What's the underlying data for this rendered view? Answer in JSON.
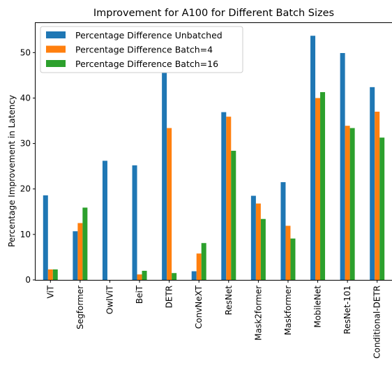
{
  "chart_data": {
    "type": "bar",
    "title": "Improvement for A100 for Different Batch Sizes",
    "xlabel": "",
    "ylabel": "Percentage Improvement in Latency",
    "ylim": [
      0,
      56.5
    ],
    "yticks": [
      0,
      10,
      20,
      30,
      40,
      50
    ],
    "grid": false,
    "legend_position": "top-left",
    "categories": [
      "ViT",
      "Segformer",
      "OwlViT",
      "BeiT",
      "DETR",
      "ConvNeXT",
      "ResNet",
      "Mask2former",
      "Maskformer",
      "MobileNet",
      "ResNet-101",
      "Conditional-DETR"
    ],
    "series": [
      {
        "name": "Percentage Difference Unbatched",
        "color": "#1f77b4",
        "values": [
          18.6,
          10.7,
          26.2,
          25.2,
          45.6,
          1.9,
          36.9,
          18.5,
          21.5,
          53.7,
          49.9,
          42.4
        ]
      },
      {
        "name": "Percentage Difference Batch=4",
        "color": "#ff7f0e",
        "values": [
          2.3,
          12.5,
          0,
          1.2,
          33.4,
          5.8,
          35.9,
          16.8,
          11.9,
          40.0,
          33.9,
          37.0
        ]
      },
      {
        "name": "Percentage Difference Batch=16",
        "color": "#2ca02c",
        "values": [
          2.3,
          15.9,
          0,
          2.0,
          1.5,
          8.1,
          28.4,
          13.4,
          9.1,
          41.3,
          33.4,
          31.3
        ]
      }
    ]
  }
}
